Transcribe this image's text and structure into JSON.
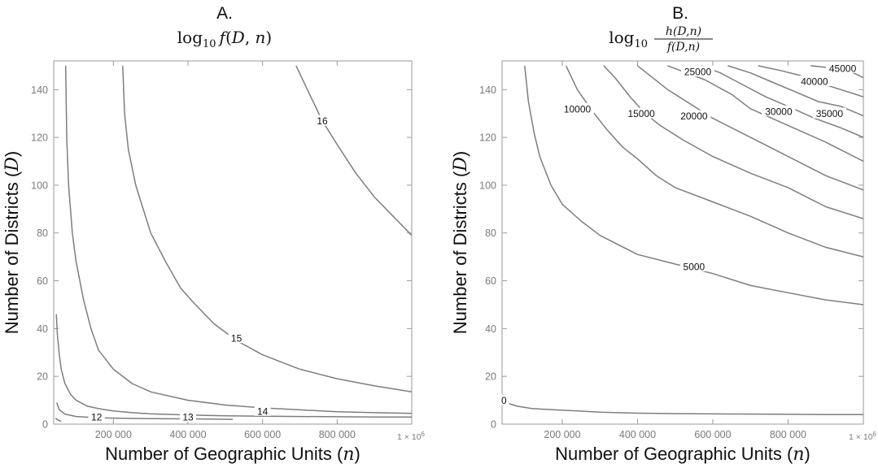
{
  "chart_data": [
    {
      "type": "contour",
      "panel_letter": "A.",
      "title": "log10 f(D,n)",
      "title_function": "f",
      "xlabel": "Number of Geographic Units",
      "xlabel_symbol": "n",
      "ylabel": "Number of Districts",
      "ylabel_symbol": "D",
      "xlim": [
        40000,
        1000000
      ],
      "ylim": [
        0,
        152
      ],
      "x_ticks": [
        200000,
        400000,
        600000,
        800000
      ],
      "x_tick_labels": [
        "200 000",
        "400 000",
        "600 000",
        "800 000"
      ],
      "x_multiplier_label": "1 × 10",
      "x_multiplier_exponent": "6",
      "y_ticks": [
        0,
        20,
        40,
        60,
        80,
        100,
        120,
        140
      ],
      "y_tick_labels": [
        "0",
        "20",
        "40",
        "60",
        "80",
        "100",
        "120",
        "140"
      ],
      "contours": [
        {
          "level": "12",
          "label_at": [
            155000,
            3
          ],
          "points": [
            [
              45000,
              2.5
            ],
            [
              50000,
              1.8
            ],
            [
              60000,
              1.2
            ]
          ]
        },
        {
          "level": "12",
          "label_at": [
            155000,
            3
          ],
          "points": [
            [
              48000,
              9
            ],
            [
              55000,
              6
            ],
            [
              70000,
              4.2
            ],
            [
              100000,
              3.2
            ],
            [
              140000,
              2.8
            ],
            [
              200000,
              2.5
            ],
            [
              300000,
              2.3
            ],
            [
              400000,
              2.2
            ],
            [
              520000,
              2.0
            ]
          ]
        },
        {
          "level": "13",
          "label_at": [
            400000,
            3
          ],
          "points": [
            [
              47000,
              46
            ],
            [
              50000,
              37
            ],
            [
              55000,
              29
            ],
            [
              60000,
              23
            ],
            [
              70000,
              17
            ],
            [
              85000,
              12.5
            ],
            [
              100000,
              10
            ],
            [
              130000,
              7.5
            ],
            [
              160000,
              6.5
            ],
            [
              200000,
              5.5
            ],
            [
              250000,
              4.8
            ],
            [
              300000,
              4.3
            ],
            [
              400000,
              3.8
            ],
            [
              500000,
              3.5
            ],
            [
              600000,
              3.3
            ],
            [
              700000,
              3.2
            ],
            [
              800000,
              3.1
            ],
            [
              900000,
              3.0
            ],
            [
              1000000,
              3.0
            ]
          ]
        },
        {
          "level": "14",
          "label_at": [
            600000,
            5.5
          ],
          "points": [
            [
              72000,
              150
            ],
            [
              75000,
              120
            ],
            [
              80000,
              100
            ],
            [
              90000,
              80
            ],
            [
              100000,
              68
            ],
            [
              120000,
              52
            ],
            [
              140000,
              40
            ],
            [
              160000,
              31
            ],
            [
              200000,
              23
            ],
            [
              250000,
              17
            ],
            [
              300000,
              13.5
            ],
            [
              400000,
              10
            ],
            [
              500000,
              8
            ],
            [
              600000,
              6.8
            ],
            [
              700000,
              6
            ],
            [
              800000,
              5.2
            ],
            [
              900000,
              4.8
            ],
            [
              1000000,
              4.5
            ]
          ]
        },
        {
          "level": "15",
          "label_at": [
            530000,
            36
          ],
          "points": [
            [
              225000,
              150
            ],
            [
              230000,
              130
            ],
            [
              240000,
              115
            ],
            [
              260000,
              100
            ],
            [
              280000,
              90
            ],
            [
              300000,
              80
            ],
            [
              340000,
              68
            ],
            [
              380000,
              57
            ],
            [
              420000,
              50
            ],
            [
              470000,
              42
            ],
            [
              530000,
              35
            ],
            [
              600000,
              29
            ],
            [
              700000,
              23
            ],
            [
              800000,
              19
            ],
            [
              900000,
              16
            ],
            [
              1000000,
              13.5
            ]
          ]
        },
        {
          "level": "16",
          "label_at": [
            760000,
            127
          ],
          "points": [
            [
              690000,
              150
            ],
            [
              720000,
              140
            ],
            [
              760000,
              127
            ],
            [
              800000,
              117
            ],
            [
              850000,
              105
            ],
            [
              900000,
              95
            ],
            [
              950000,
              87
            ],
            [
              1000000,
              79
            ]
          ]
        }
      ]
    },
    {
      "type": "contour",
      "panel_letter": "B.",
      "title": "log10 h(D,n)/f(D,n)",
      "title_numerator": "h(D,n)",
      "title_denominator": "f(D,n)",
      "xlabel": "Number of Geographic Units",
      "xlabel_symbol": "n",
      "ylabel": "Number of Districts",
      "ylabel_symbol": "D",
      "xlim": [
        40000,
        1000000
      ],
      "ylim": [
        0,
        152
      ],
      "x_ticks": [
        200000,
        400000,
        600000,
        800000
      ],
      "x_tick_labels": [
        "200 000",
        "400 000",
        "600 000",
        "800 000"
      ],
      "x_multiplier_label": "1 × 10",
      "x_multiplier_exponent": "6",
      "y_ticks": [
        0,
        20,
        40,
        60,
        80,
        100,
        120,
        140
      ],
      "y_tick_labels": [
        "0",
        "20",
        "40",
        "60",
        "80",
        "100",
        "120",
        "140"
      ],
      "contours": [
        {
          "level": "0",
          "label_at": [
            45000,
            10
          ],
          "points": [
            [
              45000,
              11
            ],
            [
              60000,
              8.5
            ],
            [
              80000,
              7.5
            ],
            [
              120000,
              6.5
            ],
            [
              180000,
              6
            ],
            [
              240000,
              5.5
            ],
            [
              300000,
              5
            ],
            [
              400000,
              4.6
            ],
            [
              500000,
              4.4
            ],
            [
              600000,
              4.3
            ],
            [
              700000,
              4.2
            ],
            [
              800000,
              4.1
            ],
            [
              900000,
              4.0
            ],
            [
              1000000,
              4.0
            ]
          ]
        },
        {
          "level": "5000",
          "label_at": [
            550000,
            66
          ],
          "points": [
            [
              100000,
              150
            ],
            [
              110000,
              135
            ],
            [
              125000,
              122
            ],
            [
              140000,
              112
            ],
            [
              170000,
              100
            ],
            [
              200000,
              92
            ],
            [
              250000,
              85
            ],
            [
              300000,
              79
            ],
            [
              400000,
              71
            ],
            [
              500000,
              67
            ],
            [
              600000,
              63
            ],
            [
              700000,
              58
            ],
            [
              800000,
              55
            ],
            [
              900000,
              52
            ],
            [
              1000000,
              50
            ]
          ]
        },
        {
          "level": "10000",
          "label_at": [
            240000,
            132
          ],
          "points": [
            [
              210000,
              150
            ],
            [
              240000,
              140
            ],
            [
              280000,
              131
            ],
            [
              320000,
              123
            ],
            [
              360000,
              116
            ],
            [
              400000,
              111
            ],
            [
              450000,
              104
            ],
            [
              500000,
              99
            ],
            [
              600000,
              93
            ],
            [
              700000,
              87
            ],
            [
              800000,
              80
            ],
            [
              900000,
              74
            ],
            [
              1000000,
              70
            ]
          ]
        },
        {
          "level": "15000",
          "label_at": [
            410000,
            130
          ],
          "points": [
            [
              310000,
              150
            ],
            [
              340000,
              145
            ],
            [
              380000,
              137
            ],
            [
              420000,
              130
            ],
            [
              460000,
              125
            ],
            [
              520000,
              119
            ],
            [
              600000,
              112
            ],
            [
              700000,
              105
            ],
            [
              800000,
              99
            ],
            [
              900000,
              91
            ],
            [
              1000000,
              86
            ]
          ]
        },
        {
          "level": "20000",
          "label_at": [
            550000,
            129
          ],
          "points": [
            [
              400000,
              150
            ],
            [
              440000,
              145
            ],
            [
              480000,
              140
            ],
            [
              540000,
              134
            ],
            [
              600000,
              128
            ],
            [
              700000,
              120
            ],
            [
              800000,
              112
            ],
            [
              900000,
              104
            ],
            [
              1000000,
              98
            ]
          ]
        },
        {
          "level": "25000",
          "label_at": [
            560000,
            147.5
          ],
          "points": [
            [
              480000,
              150
            ],
            [
              530000,
              147
            ],
            [
              580000,
              144
            ],
            [
              650000,
              138
            ],
            [
              700000,
              132
            ],
            [
              800000,
              125
            ],
            [
              900000,
              118
            ],
            [
              1000000,
              110
            ]
          ]
        },
        {
          "level": "30000",
          "label_at": [
            775000,
            131
          ],
          "points": [
            [
              570000,
              150
            ],
            [
              620000,
              147
            ],
            [
              680000,
              142
            ],
            [
              740000,
              137
            ],
            [
              800000,
              133
            ],
            [
              870000,
              128
            ],
            [
              940000,
              124
            ],
            [
              1000000,
              120
            ]
          ]
        },
        {
          "level": "35000",
          "label_at": [
            910000,
            130
          ],
          "points": [
            [
              640000,
              150
            ],
            [
              700000,
              147
            ],
            [
              760000,
              143
            ],
            [
              820000,
              139
            ],
            [
              880000,
              135
            ],
            [
              940000,
              133
            ],
            [
              1000000,
              129
            ]
          ]
        },
        {
          "level": "40000",
          "label_at": [
            870000,
            143.5
          ],
          "points": [
            [
              720000,
              150
            ],
            [
              780000,
              148
            ],
            [
              830000,
              146
            ],
            [
              880000,
              143
            ],
            [
              940000,
              140
            ],
            [
              1000000,
              137
            ]
          ]
        },
        {
          "level": "45000",
          "label_at": [
            945000,
            149
          ],
          "points": [
            [
              860000,
              150
            ],
            [
              920000,
              149
            ],
            [
              960000,
              148
            ],
            [
              1000000,
              145
            ]
          ]
        }
      ]
    }
  ]
}
